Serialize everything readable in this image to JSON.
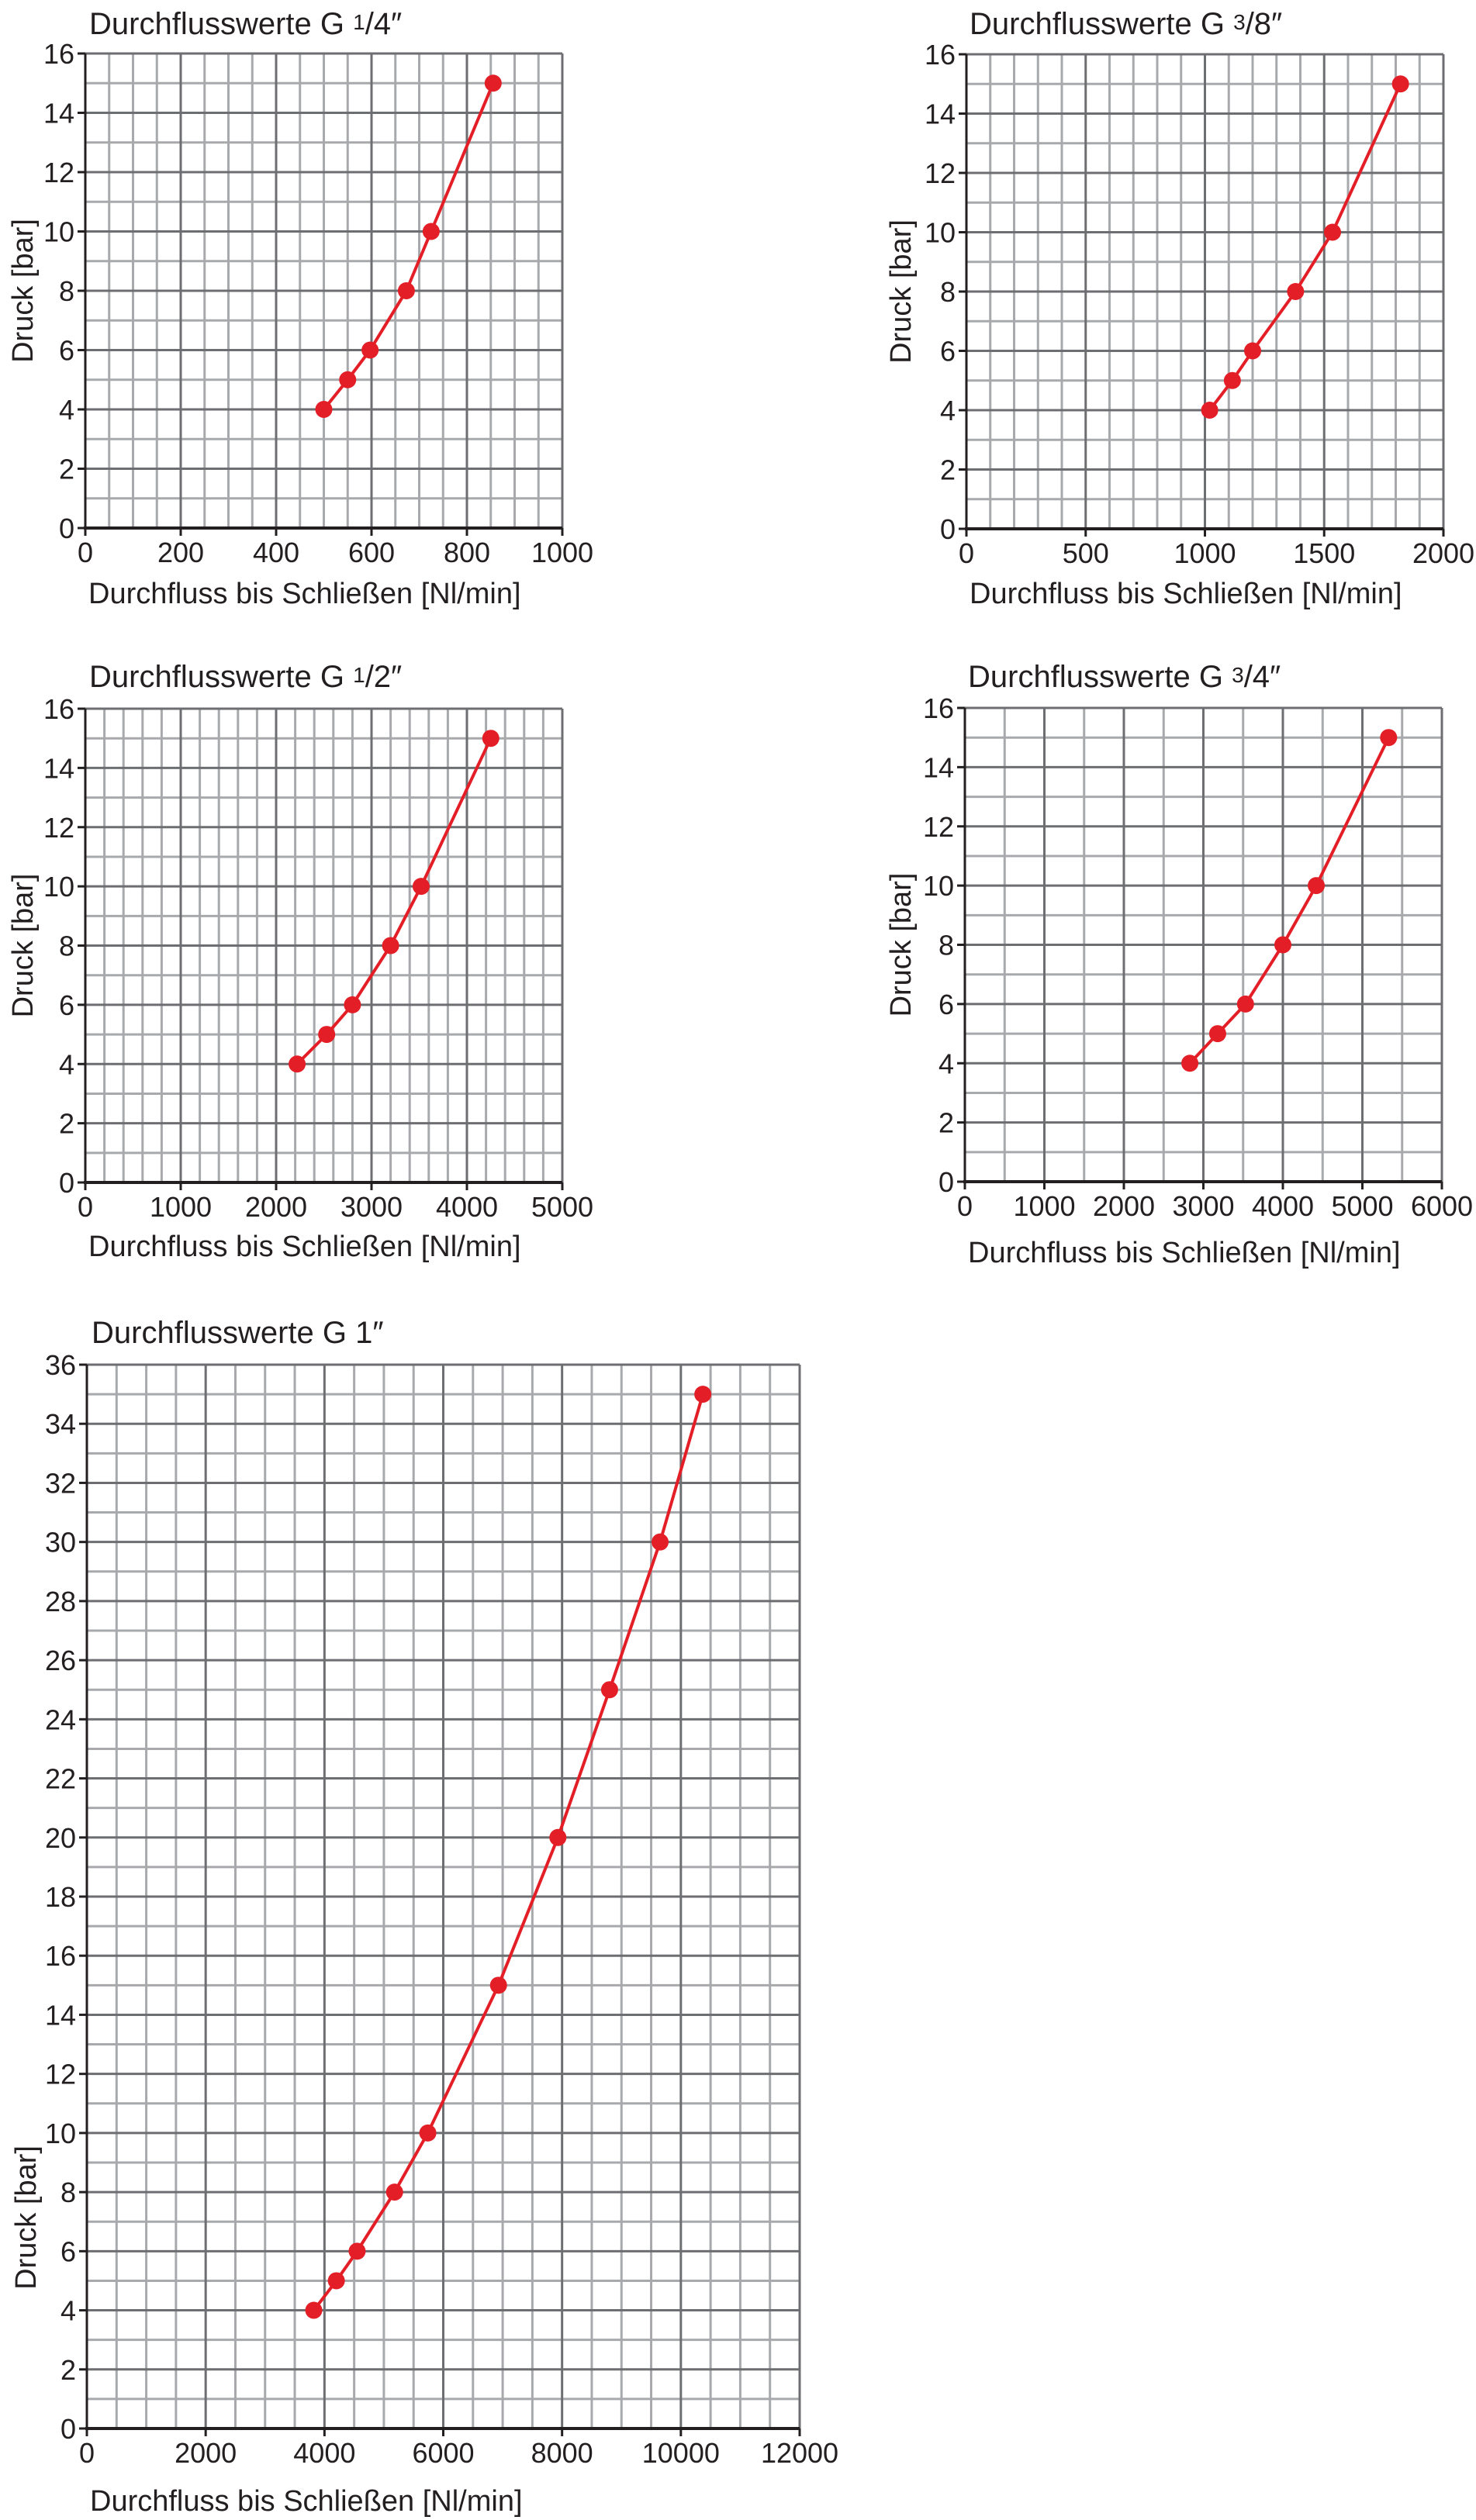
{
  "chart_data": [
    {
      "type": "line",
      "title_parts": [
        {
          "text": "Durchflusswerte G "
        },
        {
          "text": "1",
          "sup": true
        },
        {
          "text": "/4″"
        }
      ],
      "xlabel": "Durchfluss bis Schließen [Nl/min]",
      "ylabel": "Druck [bar]",
      "xlim": [
        0,
        1000
      ],
      "ylim": [
        0,
        16
      ],
      "x_major": 200,
      "x_minor": 50,
      "y_major": 2,
      "y_minor": 1,
      "xticks": [
        "0",
        "200",
        "400",
        "600",
        "800",
        "1000"
      ],
      "yticks": [
        "0",
        "2",
        "4",
        "6",
        "8",
        "10",
        "12",
        "14",
        "16"
      ],
      "grid": true,
      "color": "#e31e26",
      "x": [
        500,
        550,
        597,
        673,
        725,
        855
      ],
      "y": [
        4,
        5,
        6,
        8,
        10,
        15
      ]
    },
    {
      "type": "line",
      "title_parts": [
        {
          "text": "Durchflusswerte G "
        },
        {
          "text": "3",
          "sup": true
        },
        {
          "text": "/8″"
        }
      ],
      "xlabel": "Durchfluss bis Schließen [Nl/min]",
      "ylabel": "Druck [bar]",
      "xlim": [
        0,
        2000
      ],
      "ylim": [
        0,
        16
      ],
      "x_major": 500,
      "x_minor": 100,
      "y_major": 2,
      "y_minor": 1,
      "xticks": [
        "0",
        "500",
        "1000",
        "1500",
        "2000"
      ],
      "yticks": [
        "0",
        "2",
        "4",
        "6",
        "8",
        "10",
        "12",
        "14",
        "16"
      ],
      "grid": true,
      "color": "#e31e26",
      "x": [
        1020,
        1115,
        1200,
        1380,
        1535,
        1820
      ],
      "y": [
        4,
        5,
        6,
        8,
        10,
        15
      ]
    },
    {
      "type": "line",
      "title_parts": [
        {
          "text": "Durchflusswerte G "
        },
        {
          "text": "1",
          "sup": true
        },
        {
          "text": "/2″"
        }
      ],
      "xlabel": "Durchfluss bis Schließen [Nl/min]",
      "ylabel": "Druck [bar]",
      "xlim": [
        0,
        5000
      ],
      "ylim": [
        0,
        16
      ],
      "x_major": 1000,
      "x_minor": 200,
      "y_major": 2,
      "y_minor": 1,
      "xticks": [
        "0",
        "1000",
        "2000",
        "3000",
        "4000",
        "5000"
      ],
      "yticks": [
        "0",
        "2",
        "4",
        "6",
        "8",
        "10",
        "12",
        "14",
        "16"
      ],
      "grid": true,
      "color": "#e31e26",
      "x": [
        2220,
        2530,
        2800,
        3200,
        3520,
        4250
      ],
      "y": [
        4,
        5,
        6,
        8,
        10,
        15
      ]
    },
    {
      "type": "line",
      "title_parts": [
        {
          "text": "Durchflusswerte G "
        },
        {
          "text": "3",
          "sup": true
        },
        {
          "text": "/4″"
        }
      ],
      "xlabel": "Durchfluss bis Schließen [Nl/min]",
      "ylabel": "Druck [bar]",
      "xlim": [
        0,
        6000
      ],
      "ylim": [
        0,
        16
      ],
      "x_major": 1000,
      "x_minor": 500,
      "y_major": 2,
      "y_minor": 1,
      "xticks": [
        "0",
        "1000",
        "2000",
        "3000",
        "4000",
        "5000",
        "6000"
      ],
      "yticks": [
        "0",
        "2",
        "4",
        "6",
        "8",
        "10",
        "12",
        "14",
        "16"
      ],
      "grid": true,
      "color": "#e31e26",
      "x": [
        2830,
        3180,
        3530,
        4000,
        4420,
        5330
      ],
      "y": [
        4,
        5,
        6,
        8,
        10,
        15
      ]
    },
    {
      "type": "line",
      "title_parts": [
        {
          "text": "Durchflusswerte G 1″"
        }
      ],
      "xlabel": "Durchfluss bis Schließen [Nl/min]",
      "ylabel": "Druck [bar]",
      "xlim": [
        0,
        12000
      ],
      "ylim": [
        0,
        36
      ],
      "x_major": 2000,
      "x_minor": 500,
      "y_major": 2,
      "y_minor": 1,
      "xticks": [
        "0",
        "2000",
        "4000",
        "6000",
        "8000",
        "10000",
        "12000"
      ],
      "yticks": [
        "0",
        "2",
        "4",
        "6",
        "8",
        "10",
        "12",
        "14",
        "16",
        "18",
        "20",
        "22",
        "24",
        "26",
        "28",
        "30",
        "32",
        "34",
        "36"
      ],
      "grid": true,
      "color": "#e31e26",
      "x": [
        3820,
        4200,
        4550,
        5180,
        5740,
        6930,
        7930,
        8800,
        9650,
        10370
      ],
      "y": [
        4,
        5,
        6,
        8,
        10,
        15,
        20,
        25,
        30,
        35
      ]
    }
  ]
}
